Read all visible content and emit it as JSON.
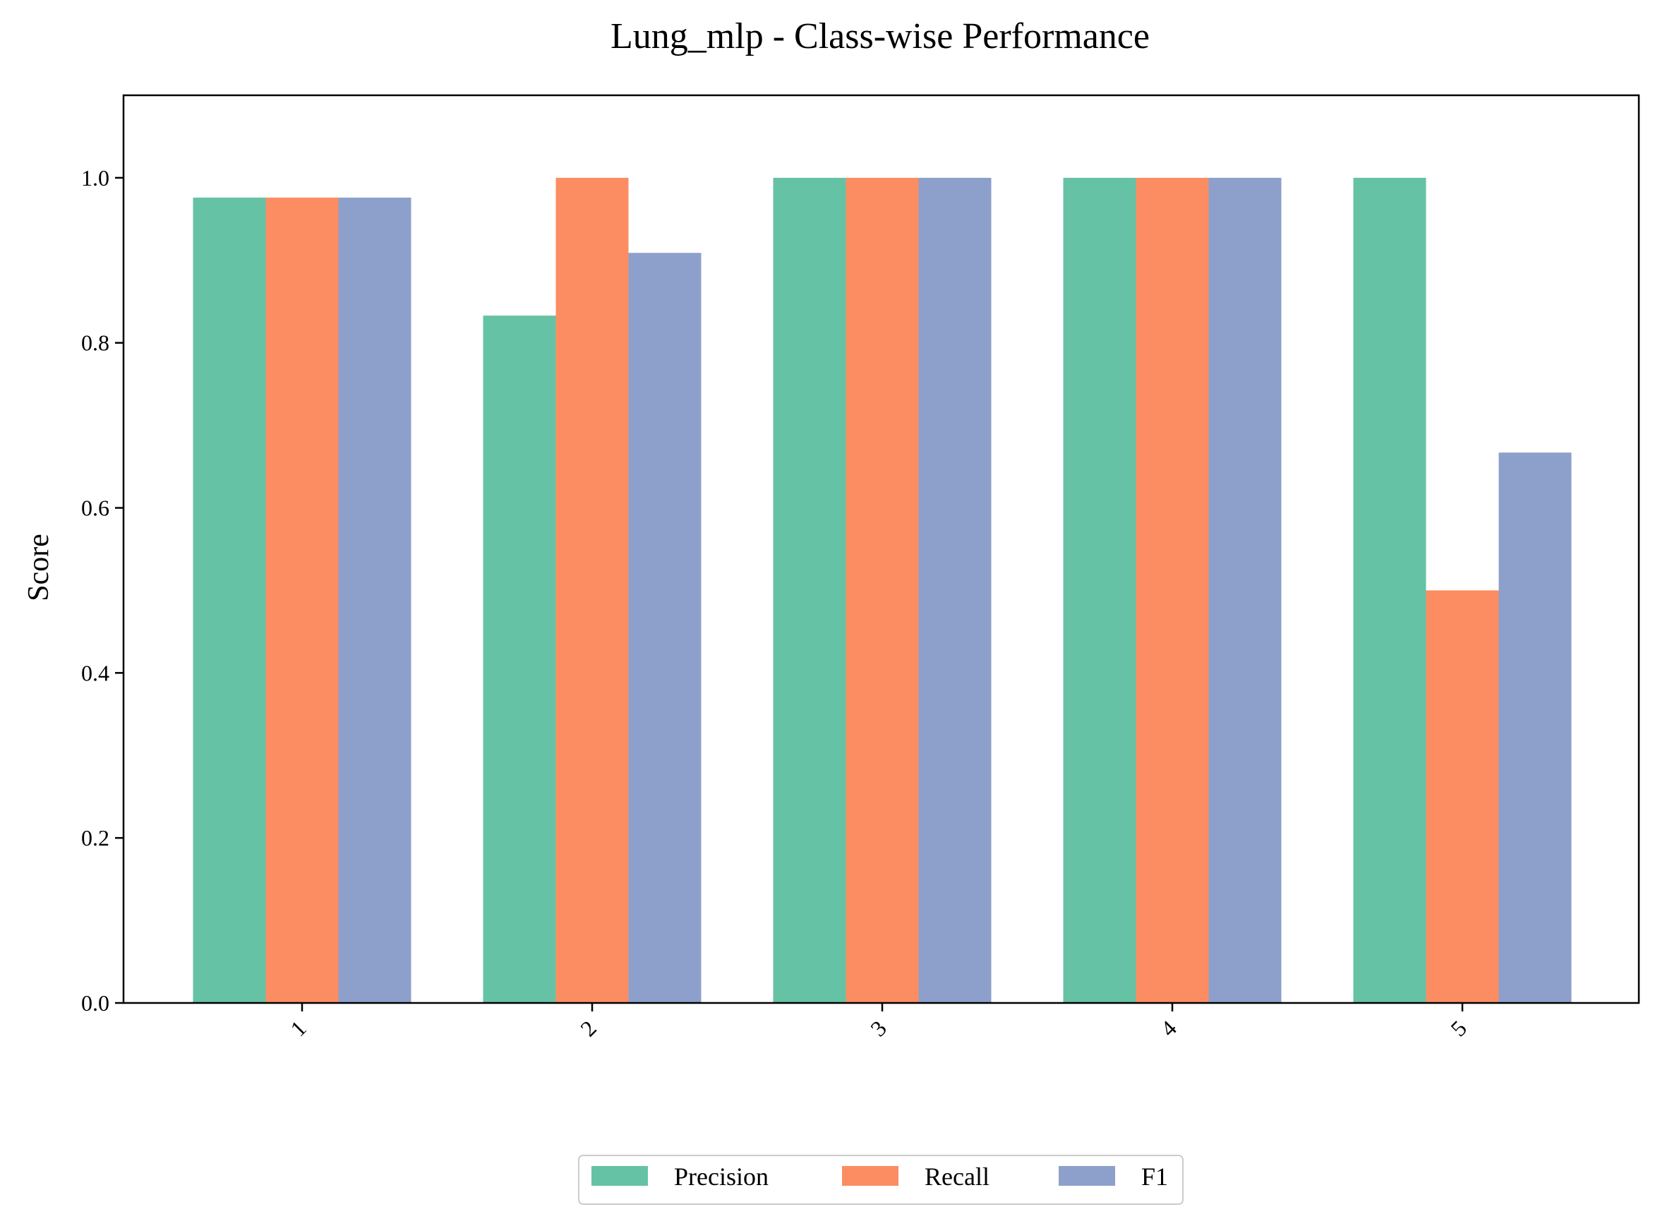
{
  "chart_data": {
    "type": "bar",
    "title": "Lung_mlp - Class-wise Performance",
    "xlabel": "",
    "ylabel": "Score",
    "categories": [
      "1",
      "2",
      "3",
      "4",
      "5"
    ],
    "series": [
      {
        "name": "Precision",
        "color": "#66c2a5",
        "values": [
          0.976,
          0.833,
          1.0,
          1.0,
          1.0
        ]
      },
      {
        "name": "Recall",
        "color": "#fc8d62",
        "values": [
          0.976,
          1.0,
          1.0,
          1.0,
          0.5
        ]
      },
      {
        "name": "F1",
        "color": "#8da0cb",
        "values": [
          0.976,
          0.909,
          1.0,
          1.0,
          0.667
        ]
      }
    ],
    "ylim": [
      0,
      1.1
    ],
    "yticks": [
      "0.0",
      "0.2",
      "0.4",
      "0.6",
      "0.8",
      "1.0"
    ],
    "grid": false,
    "legend_position": "bottom-center"
  }
}
